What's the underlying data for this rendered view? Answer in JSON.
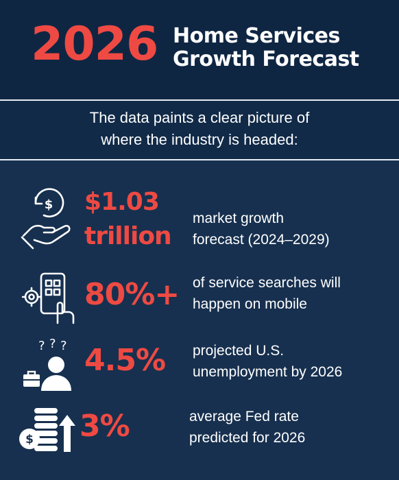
{
  "header": {
    "year": "2026",
    "title_line1": "Home Services",
    "title_line2": "Growth Forecast"
  },
  "intro": {
    "line1": "The data paints a clear picture of",
    "line2": "where the industry is headed:"
  },
  "stats": [
    {
      "icon": "money-hand-icon",
      "value_line1": "$1.03",
      "value_line2": "trillion",
      "desc_line1": "market growth",
      "desc_line2": "forecast (2024–2029)"
    },
    {
      "icon": "mobile-touch-icon",
      "value": "80%+",
      "desc_line1": "of service searches will",
      "desc_line2": "happen on mobile"
    },
    {
      "icon": "worried-person-icon",
      "value": "4.5%",
      "desc_line1": "projected U.S.",
      "desc_line2": "unemployment by 2026"
    },
    {
      "icon": "coin-stack-arrow-icon",
      "value": "3%",
      "desc_line1": "average Fed rate",
      "desc_line2": "predicted for 2026"
    }
  ],
  "colors": {
    "background": "#17304f",
    "header_bg": "#0f2643",
    "accent": "#ee4a43",
    "text": "#ffffff"
  }
}
